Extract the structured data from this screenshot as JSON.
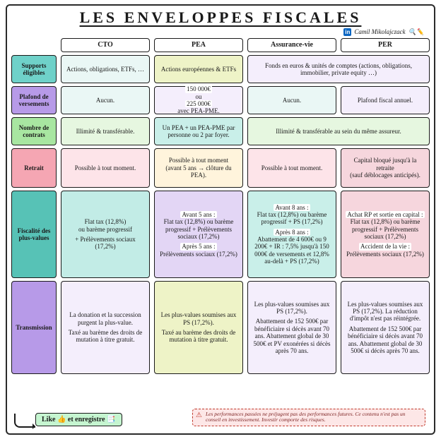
{
  "title": "LES ENVELOPPES FISCALES",
  "author": "Camil Mikolajczack",
  "author_icons": "🔍✏️",
  "columns": [
    "CTO",
    "PEA",
    "Assurance-vie",
    "PER"
  ],
  "rows": [
    {
      "key": "supports",
      "label": "Supports éligibles",
      "color": "#6fd1c9"
    },
    {
      "key": "plafond",
      "label": "Plafond de versements",
      "color": "#b79ae8"
    },
    {
      "key": "nombre",
      "label": "Nombre de contrats",
      "color": "#a8e6a1"
    },
    {
      "key": "retrait",
      "label": "Retrait",
      "color": "#f5a6b3"
    },
    {
      "key": "fiscalite",
      "label": "Fiscalité des plus-values",
      "color": "#57c2b6"
    },
    {
      "key": "transmission",
      "label": "Transmission",
      "color": "#b79ae8"
    }
  ],
  "cells": {
    "supports": [
      {
        "bg": "#eaf7f5",
        "text": "Actions, obligations, ETFs, …"
      },
      {
        "bg": "#eef3c7",
        "text": "Actions européennes & ETFs"
      },
      {
        "bg": "#f4eefc",
        "span": 2,
        "text": "Fonds en euros & unités de comptes (actions, obligations, immobilier, private equity …)"
      }
    ],
    "plafond": [
      {
        "bg": "#eaf7f5",
        "text": "Aucun."
      },
      {
        "bg": "#f4eefc",
        "html": "<span class='hl'>150 000€</span> ou <span class='hl'>225 000€</span> avec PEA-PME."
      },
      {
        "bg": "#eaf7f5",
        "text": "Aucun."
      },
      {
        "bg": "#f4eefc",
        "text": "Plafond fiscal annuel."
      }
    ],
    "nombre": [
      {
        "bg": "#e6f7e0",
        "text": "Illimité & transférable."
      },
      {
        "bg": "#c9efe9",
        "text": "Un PEA + un PEA-PME par personne ou 2 par foyer."
      },
      {
        "bg": "#e6f7e0",
        "span": 2,
        "text": "Illimité & transférable au sein du même assureur."
      }
    ],
    "retrait": [
      {
        "bg": "#fde4e9",
        "text": "Possible à tout moment."
      },
      {
        "bg": "#fff4dc",
        "html": "Possible à tout moment<br>(avant 5 ans → clôture du PEA)."
      },
      {
        "bg": "#fde4e9",
        "text": "Possible à tout moment."
      },
      {
        "bg": "#f6d6dd",
        "html": "Capital bloqué jusqu'à la retraite<br>(sauf déblocages anticipés)."
      }
    ],
    "fiscalite": [
      {
        "bg": "#c2ece6",
        "html": "<p>Flat tax (12,8%)<br>ou barème progressif</p><p>+ Prélèvements sociaux (17,2%)</p>"
      },
      {
        "bg": "#e3d6f5",
        "html": "<p><span class='hl'>Avant 5 ans :</span><br>Flat tax (12,8%) ou barème progressif + Prélèvements sociaux (17,2%)</p><p><span class='hl'>Après 5 ans :</span><br>Prélèvements sociaux (17,2%)</p>"
      },
      {
        "bg": "#c9efe9",
        "html": "<p><span class='hl'>Avant 8 ans :</span><br>Flat tax (12,8%) ou barème progressif + PS (17,2%)</p><p><span class='hl'>Après 8 ans :</span><br>Abattement de 4 600€ ou 9 200€ + IR : 7,5% jusqu'à 150 000€ de versements et 12,8% au-delà + PS (17,2%)</p>"
      },
      {
        "bg": "#f6d6dd",
        "html": "<p><span class='hl'>Achat RP et sortie en capital :</span><br>Flat tax (12,8%) ou barème progressif + Prélèvements sociaux (17,2%)</p><p><span class='hl'>Accident de la vie :</span><br>Prélèvements sociaux (17,2%)</p>"
      }
    ],
    "transmission": [
      {
        "bg": "#f4eefc",
        "html": "<p>La donation et la succession purgent la plus-value.</p><p>Taxé au barème des droits de mutation à titre gratuit.</p>"
      },
      {
        "bg": "#eef3c7",
        "html": "<p>Les plus-values soumises aux PS (17,2%).</p><p>Taxé au barème des droits de mutation à titre gratuit.</p>"
      },
      {
        "bg": "#f4eefc",
        "html": "<p>Les plus-values soumises aux PS (17,2%).</p><p>Abattement de 152 500€ par bénéficiaire si décès avant 70 ans. Abattement global de 30 500€ et PV exonérées si décès après 70 ans.</p>"
      },
      {
        "bg": "#f4eefc",
        "html": "<p>Les plus-values soumises aux PS (17,2%). La réduction d'impôt n'est pas réintégrée.</p><p>Abattement de 152 500€ par bénéficiaire si décès avant 70 ans. Abattement global de 30 500€ si décès après 70 ans.</p>"
      }
    ]
  },
  "footer": {
    "like": "Like 👍 et enregistre 📑",
    "disclaimer": "Les performances passées ne préjugent pas des performances futures. Ce contenu n'est pas un conseil en investissement. Investir comporte des risques."
  }
}
